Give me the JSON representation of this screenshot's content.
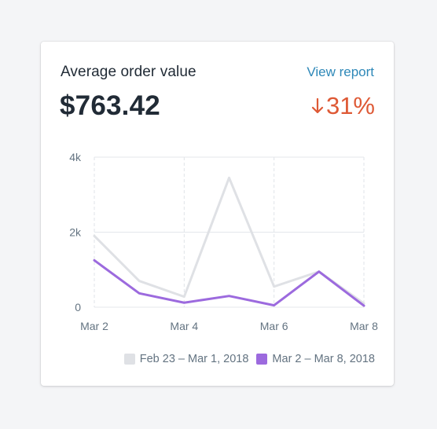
{
  "card": {
    "title": "Average order value",
    "link_label": "View report",
    "value": "$763.42",
    "change": "31%",
    "change_direction": "down",
    "change_icon": "arrow-down-icon",
    "change_color": "#de5935",
    "link_color": "#2e88b8"
  },
  "chart_data": {
    "type": "line",
    "x": [
      "Mar 2",
      "Mar 3",
      "Mar 4",
      "Mar 5",
      "Mar 6",
      "Mar 7",
      "Mar 8"
    ],
    "xticks": [
      "Mar 2",
      "Mar 4",
      "Mar 6",
      "Mar 8"
    ],
    "yticks": [
      "0",
      "2k",
      "4k"
    ],
    "ylim": [
      0,
      4000
    ],
    "grid": true,
    "legend_position": "bottom-right",
    "series": [
      {
        "name": "Feb 23 – Mar 1, 2018",
        "color": "#dfe1e5",
        "values": [
          1900,
          700,
          280,
          3450,
          550,
          950,
          100
        ]
      },
      {
        "name": "Mar 2 – Mar 8, 2018",
        "color": "#9c6ade",
        "values": [
          1250,
          370,
          120,
          300,
          50,
          950,
          40
        ]
      }
    ]
  }
}
